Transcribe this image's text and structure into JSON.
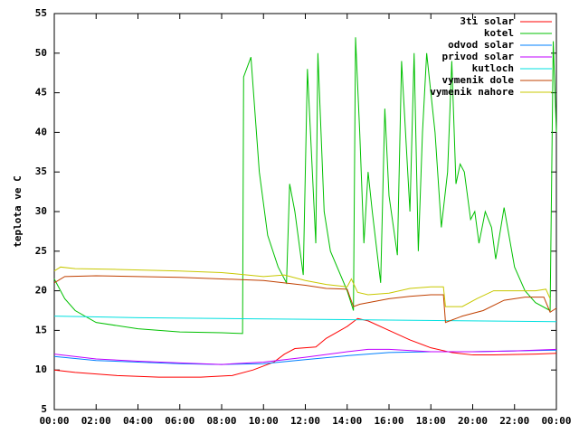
{
  "chart_data": {
    "type": "line",
    "y_label": "teplota ve C",
    "xlim": [
      0,
      24
    ],
    "xticks": [
      {
        "value": 0,
        "label": "00:00"
      },
      {
        "value": 2,
        "label": "02:00"
      },
      {
        "value": 4,
        "label": "04:00"
      },
      {
        "value": 6,
        "label": "06:00"
      },
      {
        "value": 8,
        "label": "08:00"
      },
      {
        "value": 10,
        "label": "10:00"
      },
      {
        "value": 12,
        "label": "12:00"
      },
      {
        "value": 14,
        "label": "14:00"
      },
      {
        "value": 16,
        "label": "16:00"
      },
      {
        "value": 18,
        "label": "18:00"
      },
      {
        "value": 20,
        "label": "20:00"
      },
      {
        "value": 22,
        "label": "22:00"
      },
      {
        "value": 24,
        "label": "00:00"
      }
    ],
    "ylim": [
      5,
      55
    ],
    "yticks": [
      5,
      10,
      15,
      20,
      25,
      30,
      35,
      40,
      45,
      50,
      55
    ],
    "legend": "top-right",
    "series": [
      {
        "name": "3ti solar",
        "color": "#ff0000",
        "x": [
          0,
          1,
          3,
          5,
          7,
          8.5,
          9.5,
          10.5,
          11,
          11.5,
          12.5,
          13,
          14,
          14.5,
          15,
          16,
          17,
          18,
          19,
          20,
          21,
          23,
          24
        ],
        "values": [
          10,
          9.7,
          9.3,
          9.1,
          9.1,
          9.3,
          10,
          11,
          12,
          12.7,
          12.9,
          14,
          15.5,
          16.5,
          16.2,
          15,
          13.8,
          12.8,
          12.2,
          11.9,
          11.9,
          12,
          12.1
        ]
      },
      {
        "name": "kotel",
        "color": "#00c000",
        "x": [
          0,
          0.5,
          1,
          2,
          4,
          6,
          8,
          9,
          9.05,
          9.4,
          9.8,
          10.2,
          10.7,
          11.1,
          11.25,
          11.5,
          11.9,
          12.1,
          12.5,
          12.6,
          12.9,
          13.2,
          14,
          14.3,
          14.4,
          14.6,
          14.8,
          15,
          15.2,
          15.6,
          15.8,
          16,
          16.4,
          16.6,
          17,
          17.2,
          17.4,
          17.6,
          17.8,
          18.2,
          18.5,
          18.8,
          19,
          19.2,
          19.4,
          19.6,
          19.9,
          20.1,
          20.3,
          20.6,
          20.9,
          21.1,
          21.5,
          22,
          22.5,
          23,
          23.7,
          23.85,
          24
        ],
        "values": [
          21.5,
          19,
          17.5,
          16,
          15.2,
          14.8,
          14.7,
          14.6,
          47,
          49.5,
          35,
          27,
          23,
          21,
          33.5,
          30,
          22,
          48,
          26,
          50,
          30,
          25,
          20,
          17.5,
          52,
          40,
          26,
          35,
          30,
          21,
          43,
          32,
          24.5,
          49,
          30,
          50,
          25,
          40,
          50,
          40,
          28,
          35,
          49,
          33.5,
          36,
          35,
          29,
          30,
          26,
          30,
          28,
          24,
          30.5,
          23,
          20,
          18.5,
          17.5,
          51.5,
          40
        ]
      },
      {
        "name": "odvod solar",
        "color": "#0080ff",
        "x": [
          0,
          2,
          4,
          6,
          8,
          10,
          12,
          14,
          16,
          18,
          20,
          22,
          24
        ],
        "values": [
          11.7,
          11.2,
          11,
          10.8,
          10.7,
          10.8,
          11.3,
          11.8,
          12.2,
          12.3,
          12.3,
          12.4,
          12.5
        ]
      },
      {
        "name": "privod solar",
        "color": "#c000ff",
        "x": [
          0,
          2,
          4,
          6,
          8,
          10,
          12,
          14,
          15,
          16,
          18,
          20,
          22,
          24
        ],
        "values": [
          12,
          11.4,
          11.1,
          10.9,
          10.7,
          11,
          11.6,
          12.3,
          12.6,
          12.6,
          12.3,
          12.3,
          12.4,
          12.6
        ]
      },
      {
        "name": "kutloch",
        "color": "#00e0e0",
        "x": [
          0,
          4,
          8,
          12,
          16,
          20,
          24
        ],
        "values": [
          16.8,
          16.6,
          16.5,
          16.4,
          16.3,
          16.2,
          16.1
        ]
      },
      {
        "name": "vymenik dole",
        "color": "#c04000",
        "x": [
          0,
          0.5,
          2,
          6,
          8,
          10,
          12,
          13,
          14,
          14.3,
          14.6,
          15,
          16,
          17,
          18,
          18.6,
          18.7,
          19.5,
          20.5,
          21.5,
          22.5,
          23.4,
          23.7,
          24
        ],
        "values": [
          21,
          21.8,
          21.9,
          21.7,
          21.5,
          21.3,
          20.7,
          20.3,
          20.2,
          18,
          18.3,
          18.5,
          19,
          19.3,
          19.5,
          19.5,
          16,
          16.8,
          17.5,
          18.8,
          19.2,
          19.2,
          17.3,
          17.8
        ]
      },
      {
        "name": "vymenik nahore",
        "color": "#c8c800",
        "x": [
          0,
          0.3,
          1,
          3,
          6,
          8,
          10,
          11,
          12,
          13,
          14,
          14.2,
          14.5,
          15,
          16,
          17,
          18,
          18.6,
          18.7,
          19.5,
          20.2,
          21,
          22,
          23,
          23.5,
          23.7
        ],
        "values": [
          22.5,
          23,
          22.8,
          22.7,
          22.5,
          22.3,
          21.8,
          22,
          21.3,
          20.8,
          20.5,
          21.5,
          19.8,
          19.5,
          19.7,
          20.3,
          20.5,
          20.5,
          18,
          18,
          19,
          20,
          20,
          20,
          20.2,
          19
        ]
      }
    ]
  }
}
